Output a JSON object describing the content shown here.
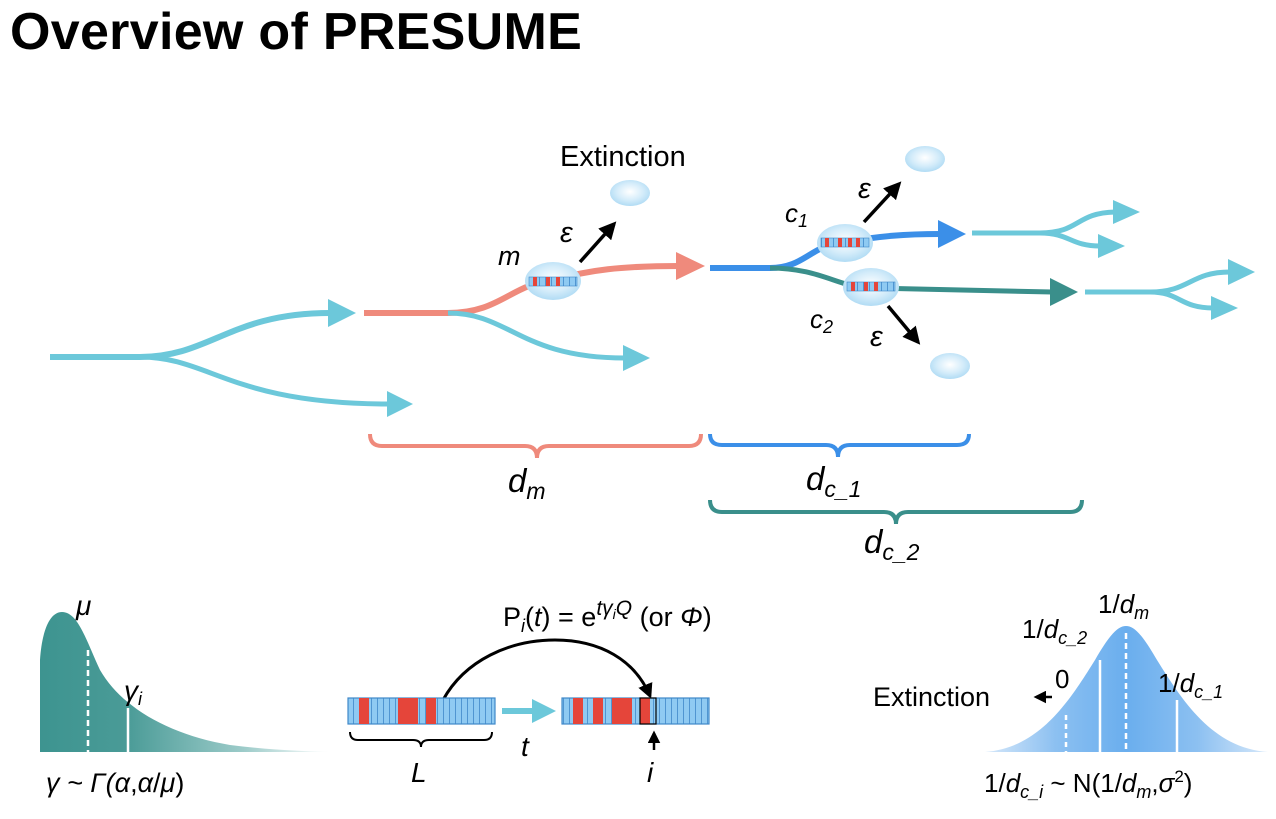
{
  "title": "Overview of PRESUME",
  "colors": {
    "cyan": "#6cc8da",
    "salmon": "#ef8a7c",
    "blue": "#3b8fe8",
    "teal": "#3a8f8b",
    "gamma_fill": "#3d9490",
    "normal_fill": "#6fb1ee",
    "dna_blue": "#8fcaf2",
    "dna_red": "#e5453a"
  },
  "tree": {
    "extinction_label": "Extinction",
    "epsilon": "ε",
    "mother_label": "m",
    "child1": {
      "base": "c",
      "sub": "1"
    },
    "child2": {
      "base": "c",
      "sub": "2"
    },
    "bracket_dm": {
      "base": "d",
      "sub": "m"
    },
    "bracket_dc1": {
      "base": "d",
      "sub": "c_1"
    },
    "bracket_dc2": {
      "base": "d",
      "sub": "c_2"
    }
  },
  "gamma_panel": {
    "mu": "μ",
    "gamma_i": {
      "base": "γ",
      "sub": "i"
    },
    "formula": [
      "γ ~ Γ(",
      "α",
      ",",
      "α",
      "/",
      "μ",
      ")"
    ]
  },
  "mutation_panel": {
    "formula": {
      "P": "P",
      "i": "i",
      "t": "t",
      "eq": "= e",
      "exp": "tγ",
      "exp_sub": "i",
      "exp_Q": "Q",
      "or": " (or ",
      "phi": "Φ",
      "close": ")"
    },
    "L": "L",
    "t": "t",
    "i": "i"
  },
  "normal_panel": {
    "dm_label": {
      "pre": "1/",
      "base": "d",
      "sub": "m"
    },
    "dc2_label": {
      "pre": "1/",
      "base": "d",
      "sub": "c_2"
    },
    "dc1_label": {
      "pre": "1/",
      "base": "d",
      "sub": "c_1"
    },
    "zero": "0",
    "extinction": "Extinction",
    "formula": {
      "pre": "1/",
      "base": "d",
      "sub": "c_i",
      "mid": " ~ N(1/",
      "base2": "d",
      "sub2": "m",
      "comma": ",",
      "sigma": "σ",
      "sup": "2",
      "close": ")"
    }
  }
}
